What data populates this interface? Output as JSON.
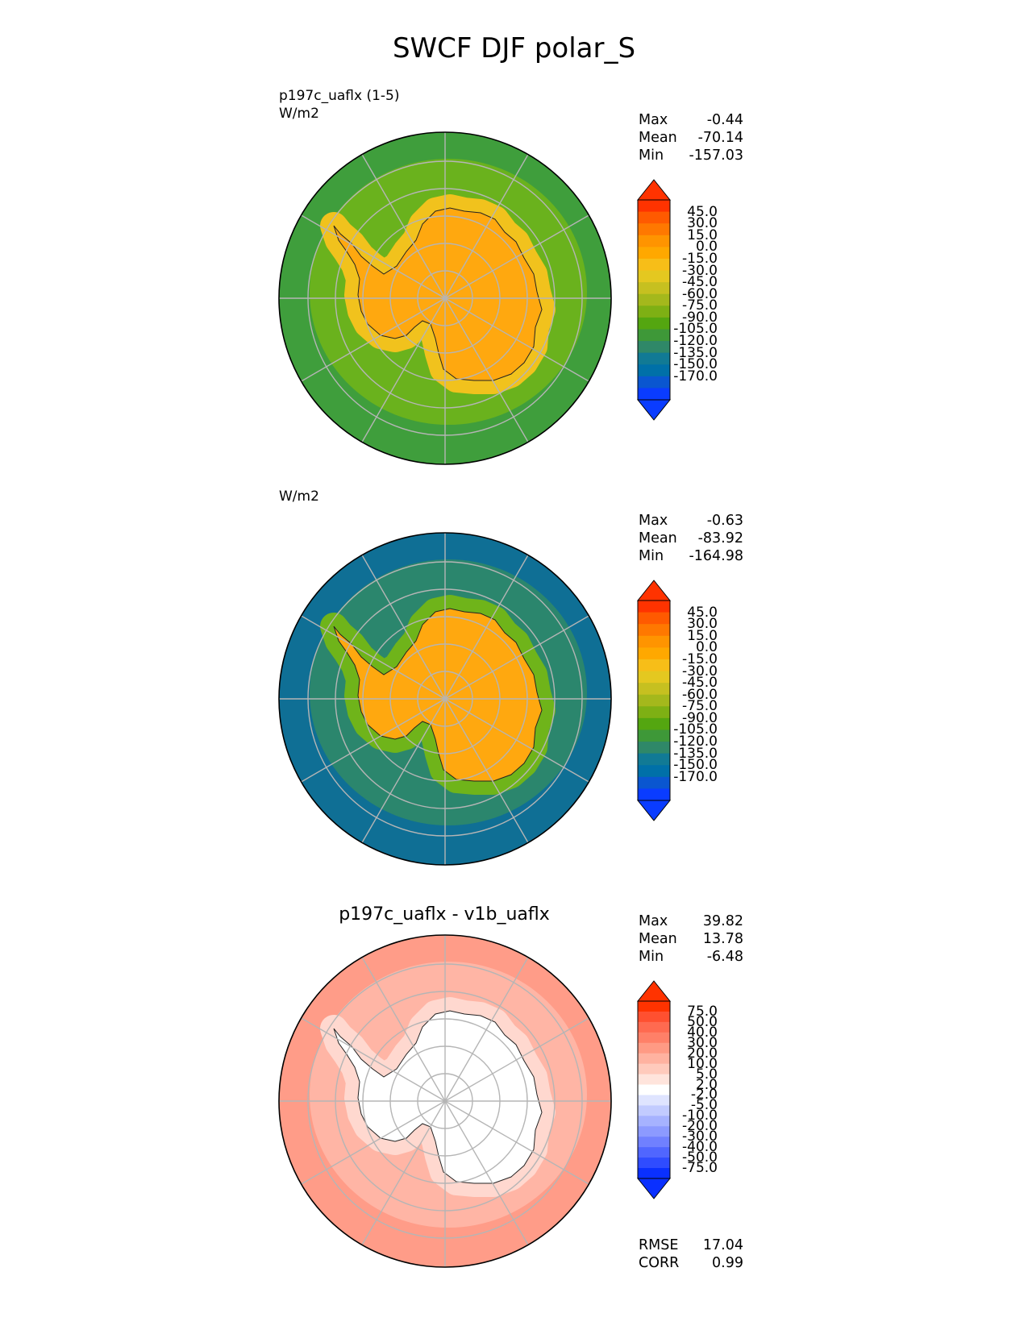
{
  "title": "SWCF DJF polar_S",
  "panels": [
    {
      "label_lines": [
        "p197c_uaflx (1-5)",
        "W/m2"
      ],
      "center_title": "",
      "stats": {
        "max_label": "Max",
        "max": "-0.44",
        "mean_label": "Mean",
        "mean": "-70.14",
        "min_label": "Min",
        "min": "-157.03"
      },
      "colorbar": {
        "labels": [
          "45.0",
          "30.0",
          "15.0",
          "0.0",
          "-15.0",
          "-30.0",
          "-45.0",
          "-60.0",
          "-75.0",
          "-90.0",
          "-105.0",
          "-120.0",
          "-135.0",
          "-150.0",
          "-170.0"
        ],
        "colors": [
          "#ff3300",
          "#ff5a00",
          "#ff7800",
          "#ff9400",
          "#ffa800",
          "#f7be18",
          "#e4c820",
          "#c6c020",
          "#a4b81c",
          "#7eb014",
          "#54a610",
          "#3e9838",
          "#2f8868",
          "#117a95",
          "#0070a8",
          "#0a56d0",
          "#0a3cff"
        ],
        "top_color": "#ff3300",
        "bottom_color": "#0a3cff"
      },
      "map": {
        "ocean_outer": "#3f9e3c",
        "ring_mid": "#6fb41a",
        "ring_inner": "#f1c21d",
        "land": "#ffa80f"
      }
    },
    {
      "label_lines": [
        "W/m2"
      ],
      "center_title": "",
      "stats": {
        "max_label": "Max",
        "max": "-0.63",
        "mean_label": "Mean",
        "mean": "-83.92",
        "min_label": "Min",
        "min": "-164.98"
      },
      "colorbar": {
        "labels": [
          "45.0",
          "30.0",
          "15.0",
          "0.0",
          "-15.0",
          "-30.0",
          "-45.0",
          "-60.0",
          "-75.0",
          "-90.0",
          "-105.0",
          "-120.0",
          "-135.0",
          "-150.0",
          "-170.0"
        ],
        "colors": [
          "#ff3300",
          "#ff5a00",
          "#ff7800",
          "#ff9400",
          "#ffa800",
          "#f7be18",
          "#e4c820",
          "#c6c020",
          "#a4b81c",
          "#7eb014",
          "#54a610",
          "#3e9838",
          "#2f8868",
          "#117a95",
          "#0070a8",
          "#0a56d0",
          "#0a3cff"
        ],
        "top_color": "#ff3300",
        "bottom_color": "#0a3cff"
      },
      "map": {
        "ocean_outer": "#0f6f95",
        "ring_mid": "#2f8868",
        "ring_inner": "#6fb41a",
        "land": "#ffa80f"
      }
    },
    {
      "label_lines": [],
      "center_title": "p197c_uaflx - v1b_uaflx",
      "stats": {
        "max_label": "Max",
        "max": "39.82",
        "mean_label": "Mean",
        "mean": "13.78",
        "min_label": "Min",
        "min": "-6.48"
      },
      "colorbar": {
        "labels": [
          "75.0",
          "50.0",
          "40.0",
          "30.0",
          "20.0",
          "10.0",
          "5.0",
          "2.0",
          "-2.0",
          "-5.0",
          "-10.0",
          "-20.0",
          "-30.0",
          "-40.0",
          "-50.0",
          "-75.0"
        ],
        "colors": [
          "#ff3300",
          "#ff5030",
          "#ff6a50",
          "#ff8068",
          "#ff9a84",
          "#ffb2a0",
          "#ffcabc",
          "#ffe4dc",
          "#ffffff",
          "#dfe4ff",
          "#c2cbff",
          "#a6b2ff",
          "#8c9aff",
          "#7080ff",
          "#5066ff",
          "#2f4cff",
          "#0a30ff"
        ],
        "top_color": "#ff3300",
        "bottom_color": "#0a30ff"
      },
      "map": {
        "ocean_outer": "#ff9c88",
        "ring_mid": "#ffb8a8",
        "ring_inner": "#ffd8cf",
        "land": "#ffffff"
      },
      "footer": {
        "rmse_label": "RMSE",
        "rmse": "17.04",
        "corr_label": "CORR",
        "corr": "0.99"
      }
    }
  ]
}
